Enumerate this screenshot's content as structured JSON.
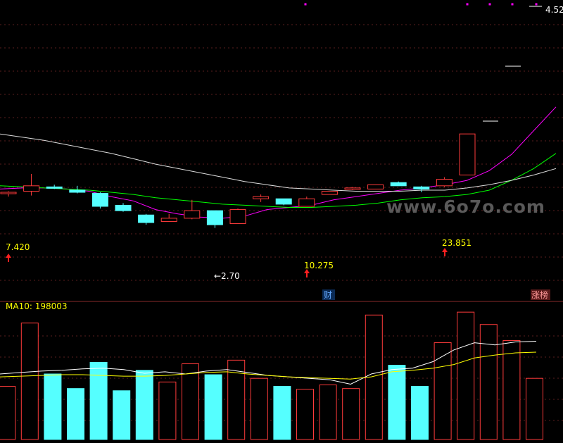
{
  "chart_data": [
    {
      "type": "candlestick",
      "panel": "price",
      "ylim": [
        2.0,
        4.6
      ],
      "grid": true,
      "candles": [
        {
          "o": 2.86,
          "h": 2.87,
          "l": 2.82,
          "c": 2.85,
          "dir": "up"
        },
        {
          "o": 2.87,
          "h": 3.03,
          "l": 2.83,
          "c": 2.92,
          "dir": "up"
        },
        {
          "o": 2.91,
          "h": 2.93,
          "l": 2.89,
          "c": 2.9,
          "dir": "down"
        },
        {
          "o": 2.88,
          "h": 2.92,
          "l": 2.85,
          "c": 2.86,
          "dir": "down"
        },
        {
          "o": 2.85,
          "h": 2.86,
          "l": 2.71,
          "c": 2.73,
          "dir": "down"
        },
        {
          "o": 2.74,
          "h": 2.76,
          "l": 2.68,
          "c": 2.69,
          "dir": "down"
        },
        {
          "o": 2.65,
          "h": 2.66,
          "l": 2.56,
          "c": 2.58,
          "dir": "down"
        },
        {
          "o": 2.59,
          "h": 2.66,
          "l": 2.59,
          "c": 2.62,
          "dir": "up"
        },
        {
          "o": 2.62,
          "h": 2.79,
          "l": 2.61,
          "c": 2.69,
          "dir": "up"
        },
        {
          "o": 2.69,
          "h": 2.69,
          "l": 2.53,
          "c": 2.56,
          "dir": "down"
        },
        {
          "o": 2.57,
          "h": 2.71,
          "l": 2.57,
          "c": 2.7,
          "dir": "up"
        },
        {
          "o": 2.8,
          "h": 2.84,
          "l": 2.77,
          "c": 2.82,
          "dir": "up"
        },
        {
          "o": 2.8,
          "h": 2.8,
          "l": 2.74,
          "c": 2.75,
          "dir": "down"
        },
        {
          "o": 2.73,
          "h": 2.82,
          "l": 2.73,
          "c": 2.8,
          "dir": "up"
        },
        {
          "o": 2.84,
          "h": 2.87,
          "l": 2.84,
          "c": 2.87,
          "dir": "up"
        },
        {
          "o": 2.89,
          "h": 2.91,
          "l": 2.88,
          "c": 2.9,
          "dir": "up"
        },
        {
          "o": 2.89,
          "h": 2.93,
          "l": 2.89,
          "c": 2.93,
          "dir": "up"
        },
        {
          "o": 2.92,
          "h": 2.96,
          "l": 2.92,
          "c": 2.95,
          "dir": "down"
        },
        {
          "o": 2.91,
          "h": 2.92,
          "l": 2.86,
          "c": 2.89,
          "dir": "down"
        },
        {
          "o": 2.92,
          "h": 3.0,
          "l": 2.91,
          "c": 2.98,
          "dir": "up"
        },
        {
          "o": 3.02,
          "h": 3.4,
          "l": 3.02,
          "c": 3.4,
          "dir": "up"
        }
      ],
      "ma_lines": [
        {
          "color": "#ff00ff",
          "values": [
            2.89,
            2.9,
            2.9,
            2.89,
            2.87,
            2.82,
            2.78,
            2.7,
            2.66,
            2.63,
            2.62,
            2.64,
            2.7,
            2.72,
            2.74,
            2.79,
            2.82,
            2.85,
            2.88,
            2.9,
            2.93,
            2.97,
            3.06,
            3.21,
            3.43,
            3.65
          ]
        },
        {
          "color": "#00ff00",
          "values": [
            2.92,
            2.91,
            2.9,
            2.89,
            2.88,
            2.86,
            2.84,
            2.81,
            2.79,
            2.77,
            2.75,
            2.74,
            2.73,
            2.72,
            2.72,
            2.73,
            2.74,
            2.76,
            2.79,
            2.81,
            2.82,
            2.84,
            2.88,
            2.97,
            3.08,
            3.22
          ]
        },
        {
          "color": "#dddddd",
          "values": [
            3.4,
            3.37,
            3.34,
            3.3,
            3.26,
            3.22,
            3.17,
            3.12,
            3.08,
            3.04,
            3.0,
            2.96,
            2.93,
            2.9,
            2.89,
            2.88,
            2.87,
            2.87,
            2.87,
            2.88,
            2.88,
            2.9,
            2.93,
            2.97,
            3.02,
            3.08
          ]
        }
      ],
      "annotations": [
        {
          "text": "7.420",
          "arrow": "up"
        },
        {
          "text": "←2.70"
        },
        {
          "text": "10.275",
          "arrow": "up"
        },
        {
          "text": "23.851",
          "arrow": "up"
        },
        {
          "text": "4.52"
        },
        {
          "text": "财"
        },
        {
          "text": "涨榜"
        }
      ],
      "watermark": "www.6o7o.com"
    },
    {
      "type": "bar",
      "panel": "volume",
      "title_label": "MA10: 198003",
      "ylim": [
        0,
        180000
      ],
      "values": [
        73000,
        160000,
        90000,
        70000,
        106000,
        67000,
        95000,
        79000,
        104000,
        89000,
        109000,
        84000,
        73000,
        69000,
        75000,
        70000,
        171000,
        102000,
        73000,
        133000,
        175000,
        158000,
        136000,
        84000
      ],
      "dir": [
        "up",
        "up",
        "down",
        "down",
        "down",
        "down",
        "down",
        "up",
        "up",
        "down",
        "up",
        "up",
        "down",
        "up",
        "up",
        "up",
        "up",
        "down",
        "down",
        "up",
        "up",
        "up",
        "up",
        "up"
      ],
      "ma_lines": [
        {
          "color": "#ffffff",
          "values": [
            90000,
            92000,
            94000,
            95000,
            97000,
            98000,
            96000,
            91000,
            93000,
            90000,
            94000,
            96000,
            92000,
            88000,
            86000,
            84000,
            82000,
            76000,
            90000,
            96000,
            98000,
            107000,
            123000,
            133000,
            130000,
            134000,
            135000
          ]
        },
        {
          "color": "#ffff00",
          "values": [
            86000,
            87000,
            88000,
            89000,
            89000,
            88000,
            87000,
            87000,
            88000,
            90000,
            92000,
            93000,
            90000,
            88000,
            86000,
            85000,
            84000,
            83000,
            86000,
            93000,
            95000,
            98000,
            103000,
            112000,
            116000,
            119000,
            120000
          ]
        }
      ]
    }
  ]
}
